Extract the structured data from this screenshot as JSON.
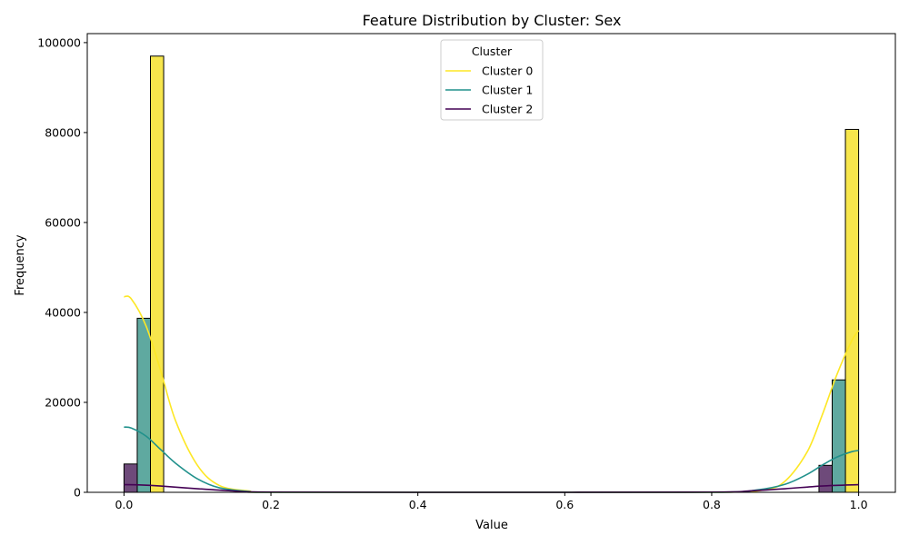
{
  "chart_data": {
    "type": "bar",
    "title": "Feature Distribution by Cluster: Sex",
    "xlabel": "Value",
    "ylabel": "Frequency",
    "xlim": [
      -0.05,
      1.05
    ],
    "ylim": [
      0,
      102000
    ],
    "x_ticks": [
      0.0,
      0.2,
      0.4,
      0.6,
      0.8,
      1.0
    ],
    "x_tick_labels": [
      "0.0",
      "0.2",
      "0.4",
      "0.6",
      "0.8",
      "1.0"
    ],
    "y_ticks": [
      0,
      20000,
      40000,
      60000,
      80000,
      100000
    ],
    "y_tick_labels": [
      "0",
      "20000",
      "40000",
      "60000",
      "80000",
      "100000"
    ],
    "legend": {
      "title": "Cluster",
      "placement": "top-center"
    },
    "series": [
      {
        "name": "Cluster 0",
        "color": "#fde725",
        "bar_color": "#f7e64c",
        "bars": [
          {
            "x_start": 0.036,
            "x_end": 0.054,
            "value": 97000
          },
          {
            "x_start": 0.982,
            "x_end": 1.0,
            "value": 80700
          }
        ],
        "kde": {
          "x": [
            0.0,
            0.01,
            0.03,
            0.05,
            0.07,
            0.1,
            0.13,
            0.17,
            0.2,
            0.5,
            0.8,
            0.87,
            0.9,
            0.93,
            0.95,
            0.97,
            0.99,
            1.0
          ],
          "y": [
            43500,
            43000,
            37000,
            27000,
            16000,
            6000,
            1500,
            300,
            0,
            0,
            0,
            500,
            2500,
            9000,
            17000,
            26000,
            33500,
            36000
          ]
        }
      },
      {
        "name": "Cluster 1",
        "color": "#21918c",
        "bar_color": "#5fa9a0",
        "bars": [
          {
            "x_start": 0.018,
            "x_end": 0.036,
            "value": 38700
          },
          {
            "x_start": 0.964,
            "x_end": 0.982,
            "value": 25000
          }
        ],
        "kde": {
          "x": [
            0.0,
            0.01,
            0.03,
            0.05,
            0.07,
            0.1,
            0.13,
            0.17,
            0.2,
            0.5,
            0.8,
            0.86,
            0.9,
            0.93,
            0.95,
            0.97,
            0.99,
            1.0
          ],
          "y": [
            14500,
            14300,
            12500,
            9500,
            6500,
            3000,
            1000,
            200,
            0,
            0,
            0,
            500,
            1800,
            4000,
            6000,
            7800,
            9000,
            9300
          ]
        }
      },
      {
        "name": "Cluster 2",
        "color": "#440154",
        "bar_color": "#6e4a7a",
        "bars": [
          {
            "x_start": 0.0,
            "x_end": 0.018,
            "value": 6300
          },
          {
            "x_start": 0.946,
            "x_end": 0.964,
            "value": 6000
          }
        ],
        "kde": {
          "x": [
            0.0,
            0.02,
            0.05,
            0.1,
            0.15,
            0.2,
            0.5,
            0.8,
            0.85,
            0.9,
            0.95,
            1.0
          ],
          "y": [
            1700,
            1650,
            1400,
            800,
            300,
            50,
            0,
            50,
            300,
            800,
            1400,
            1700
          ]
        }
      }
    ]
  }
}
